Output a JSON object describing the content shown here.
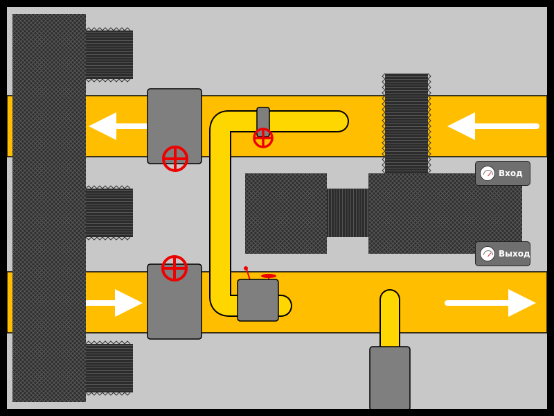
{
  "controls": {
    "input_gauge": {
      "label": "Вход",
      "icon": "pressure-gauge-icon"
    },
    "output_gauge": {
      "label": "Выход",
      "icon": "pressure-gauge-icon"
    }
  },
  "colors": {
    "background": "#c8c8c8",
    "border": "#000000",
    "channel": "#ffbf00",
    "pipe": "#ffd700",
    "equipment": "#7f7f7f",
    "wall": "#333333",
    "valve": "#ee0000",
    "arrow": "#ffffff"
  },
  "flow": {
    "upper_channel_direction": "left",
    "lower_channel_direction": "right"
  }
}
